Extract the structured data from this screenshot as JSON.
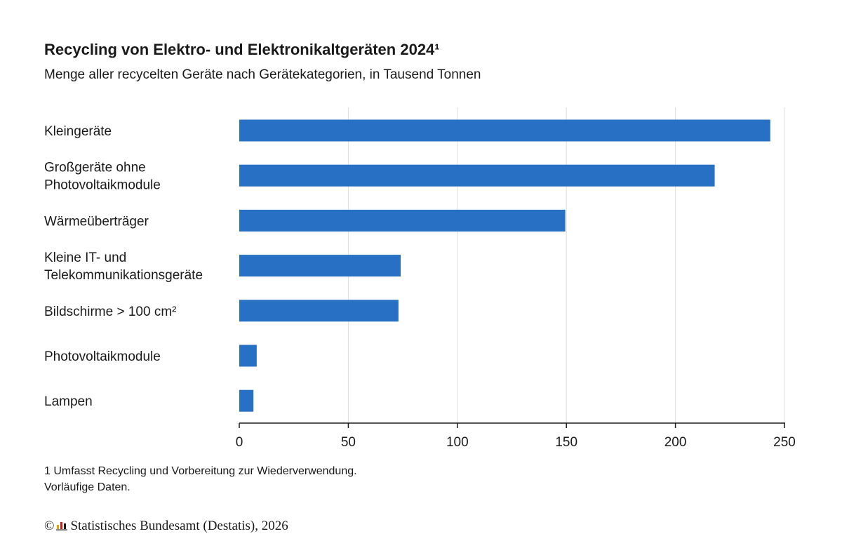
{
  "header": {
    "title": "Recycling von Elektro- und Elektronikaltgeräten 2024¹",
    "subtitle": "Menge aller recycelten Geräte nach Gerätekategorien, in Tausend Tonnen"
  },
  "footnote": {
    "line1": "1 Umfasst Recycling und Vorbereitung zur Wiederverwendung.",
    "line2": "Vorläufige Daten."
  },
  "source": {
    "copyright": "©",
    "logo_icon": "destatis-logo-icon",
    "text": "Statistisches Bundesamt (Destatis), 2026"
  },
  "colors": {
    "bar": "#2870c4",
    "grid": "#dddddd",
    "axis": "#1a1a1a",
    "logo_bars": [
      "#e2a400",
      "#c81e1e",
      "#1a1a1a"
    ]
  },
  "chart_data": {
    "type": "bar",
    "orientation": "horizontal",
    "title": "Recycling von Elektro- und Elektronikaltgeräten 2024¹",
    "subtitle": "Menge aller recycelten Geräte nach Gerätekategorien, in Tausend Tonnen",
    "categories": [
      [
        "Kleingeräte"
      ],
      [
        "Großgeräte ohne",
        "Photovoltaikmodule"
      ],
      [
        "Wärmeüberträger"
      ],
      [
        "Kleine IT- und",
        "Telekommunikationsgeräte"
      ],
      [
        "Bildschirme > 100 cm²"
      ],
      [
        "Photovoltaikmodule"
      ],
      [
        "Lampen"
      ]
    ],
    "values": [
      243.5,
      218,
      149.5,
      74,
      73,
      8,
      6.5
    ],
    "xlim": [
      0,
      250
    ],
    "xticks": [
      0,
      50,
      100,
      150,
      200,
      250
    ],
    "grid": true,
    "legend": "none"
  }
}
